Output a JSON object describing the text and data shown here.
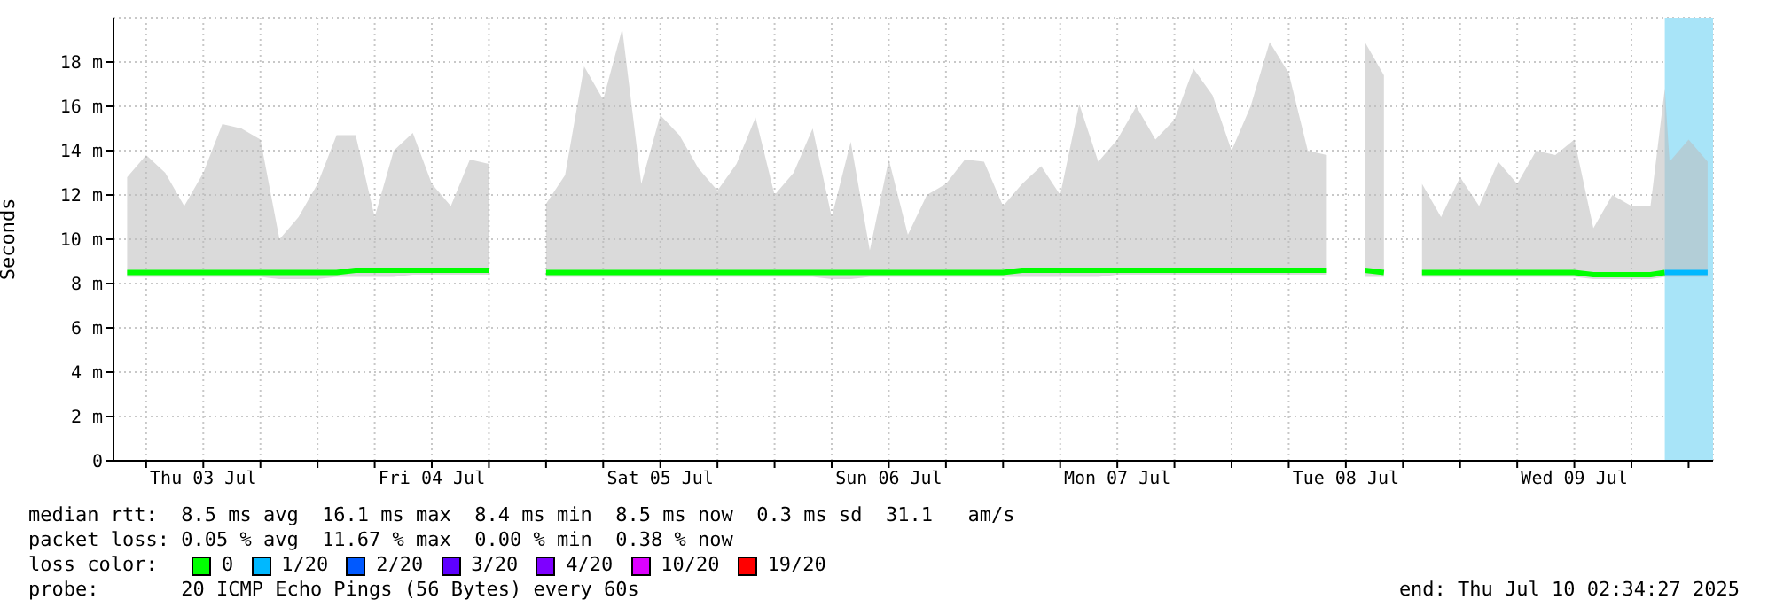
{
  "chart_data": {
    "type": "line",
    "ylabel": "Seconds",
    "xlim": [
      "2025-07-03T02:34",
      "2025-07-10T02:34"
    ],
    "xticks": [
      {
        "value": "2025-07-03T06:00",
        "label": null
      },
      {
        "value": "2025-07-03T12:00",
        "label": "Thu 03 Jul"
      },
      {
        "value": "2025-07-03T18:00",
        "label": null
      },
      {
        "value": "2025-07-04T00:00",
        "label": null
      },
      {
        "value": "2025-07-04T06:00",
        "label": null
      },
      {
        "value": "2025-07-04T12:00",
        "label": "Fri 04 Jul"
      },
      {
        "value": "2025-07-04T18:00",
        "label": null
      },
      {
        "value": "2025-07-05T00:00",
        "label": null
      },
      {
        "value": "2025-07-05T06:00",
        "label": null
      },
      {
        "value": "2025-07-05T12:00",
        "label": "Sat 05 Jul"
      },
      {
        "value": "2025-07-05T18:00",
        "label": null
      },
      {
        "value": "2025-07-06T00:00",
        "label": null
      },
      {
        "value": "2025-07-06T06:00",
        "label": null
      },
      {
        "value": "2025-07-06T12:00",
        "label": "Sun 06 Jul"
      },
      {
        "value": "2025-07-06T18:00",
        "label": null
      },
      {
        "value": "2025-07-07T00:00",
        "label": null
      },
      {
        "value": "2025-07-07T06:00",
        "label": null
      },
      {
        "value": "2025-07-07T12:00",
        "label": "Mon 07 Jul"
      },
      {
        "value": "2025-07-07T18:00",
        "label": null
      },
      {
        "value": "2025-07-08T00:00",
        "label": null
      },
      {
        "value": "2025-07-08T06:00",
        "label": null
      },
      {
        "value": "2025-07-08T12:00",
        "label": "Tue 08 Jul"
      },
      {
        "value": "2025-07-08T18:00",
        "label": null
      },
      {
        "value": "2025-07-09T00:00",
        "label": null
      },
      {
        "value": "2025-07-09T06:00",
        "label": null
      },
      {
        "value": "2025-07-09T12:00",
        "label": "Wed 09 Jul"
      },
      {
        "value": "2025-07-09T18:00",
        "label": null
      },
      {
        "value": "2025-07-10T00:00",
        "label": null
      }
    ],
    "ylim": [
      0,
      20
    ],
    "yticks": [
      0,
      {
        "value": 2,
        "label": "2 m"
      },
      {
        "value": 4,
        "label": "4 m"
      },
      {
        "value": 6,
        "label": "6 m"
      },
      {
        "value": 8,
        "label": "8 m"
      },
      {
        "value": 10,
        "label": "10 m"
      },
      {
        "value": 12,
        "label": "12 m"
      },
      {
        "value": 14,
        "label": "14 m"
      },
      {
        "value": 16,
        "label": "16 m"
      },
      {
        "value": 18,
        "label": "18 m"
      }
    ],
    "grid": true,
    "legend": "bottom",
    "legend_title": "loss color:",
    "marker": "none",
    "line_style": "solid",
    "x": [
      "2025-07-03T04:00",
      "2025-07-03T06:00",
      "2025-07-03T08:00",
      "2025-07-03T10:00",
      "2025-07-03T12:00",
      "2025-07-03T14:00",
      "2025-07-03T16:00",
      "2025-07-03T18:00",
      "2025-07-03T20:00",
      "2025-07-03T22:00",
      "2025-07-04T00:00",
      "2025-07-04T02:00",
      "2025-07-04T04:00",
      "2025-07-04T06:00",
      "2025-07-04T08:00",
      "2025-07-04T10:00",
      "2025-07-04T12:00",
      "2025-07-04T14:00",
      "2025-07-04T16:00",
      "2025-07-04T18:00",
      "2025-07-04T20:00",
      "2025-07-04T22:00",
      "2025-07-05T00:00",
      "2025-07-05T02:00",
      "2025-07-05T04:00",
      "2025-07-05T06:00",
      "2025-07-05T08:00",
      "2025-07-05T10:00",
      "2025-07-05T12:00",
      "2025-07-05T14:00",
      "2025-07-05T16:00",
      "2025-07-05T18:00",
      "2025-07-05T20:00",
      "2025-07-05T22:00",
      "2025-07-06T00:00",
      "2025-07-06T02:00",
      "2025-07-06T04:00",
      "2025-07-06T06:00",
      "2025-07-06T08:00",
      "2025-07-06T10:00",
      "2025-07-06T12:00",
      "2025-07-06T14:00",
      "2025-07-06T16:00",
      "2025-07-06T18:00",
      "2025-07-06T20:00",
      "2025-07-06T22:00",
      "2025-07-07T00:00",
      "2025-07-07T02:00",
      "2025-07-07T04:00",
      "2025-07-07T06:00",
      "2025-07-07T08:00",
      "2025-07-07T10:00",
      "2025-07-07T12:00",
      "2025-07-07T14:00",
      "2025-07-07T16:00",
      "2025-07-07T18:00",
      "2025-07-07T20:00",
      "2025-07-07T22:00",
      "2025-07-08T00:00",
      "2025-07-08T02:00",
      "2025-07-08T04:00",
      "2025-07-08T06:00",
      "2025-07-08T08:00",
      "2025-07-08T10:00",
      "2025-07-08T12:00",
      "2025-07-08T14:00",
      "2025-07-08T16:00",
      "2025-07-08T18:00",
      "2025-07-08T20:00",
      "2025-07-08T22:00",
      "2025-07-09T00:00",
      "2025-07-09T02:00",
      "2025-07-09T04:00",
      "2025-07-09T06:00",
      "2025-07-09T08:00",
      "2025-07-09T10:00",
      "2025-07-09T12:00",
      "2025-07-09T14:00",
      "2025-07-09T16:00",
      "2025-07-09T18:00",
      "2025-07-09T20:00",
      "2025-07-09T21:30",
      "2025-07-09T22:00",
      "2025-07-10T00:00",
      "2025-07-10T02:00"
    ],
    "series": [
      {
        "name": "0",
        "color": "#00ff00",
        "values": [
          8.5,
          8.5,
          8.5,
          8.5,
          8.5,
          8.5,
          8.5,
          8.5,
          8.5,
          8.5,
          8.5,
          8.5,
          8.6,
          8.6,
          8.6,
          8.6,
          8.6,
          8.6,
          8.6,
          8.6,
          null,
          null,
          8.5,
          8.5,
          8.5,
          8.5,
          8.5,
          8.5,
          8.5,
          8.5,
          8.5,
          8.5,
          8.5,
          8.5,
          8.5,
          8.5,
          8.5,
          8.5,
          8.5,
          8.5,
          8.5,
          8.5,
          8.5,
          8.5,
          8.5,
          8.5,
          8.5,
          8.6,
          8.6,
          8.6,
          8.6,
          8.6,
          8.6,
          8.6,
          8.6,
          8.6,
          8.6,
          8.6,
          8.6,
          8.6,
          8.6,
          8.6,
          8.6,
          8.6,
          null,
          8.6,
          8.5,
          null,
          8.5,
          8.5,
          8.5,
          8.5,
          8.5,
          8.5,
          8.5,
          8.5,
          8.5,
          8.4,
          8.4,
          8.4,
          8.4,
          8.5,
          null,
          null,
          null
        ],
        "lower": [
          8.3,
          8.3,
          8.3,
          8.3,
          8.3,
          8.3,
          8.3,
          8.3,
          8.2,
          8.2,
          8.2,
          8.3,
          8.3,
          8.3,
          8.3,
          8.4,
          8.4,
          8.4,
          8.4,
          8.4,
          null,
          null,
          8.3,
          8.3,
          8.3,
          8.3,
          8.3,
          8.3,
          8.3,
          8.3,
          8.3,
          8.3,
          8.3,
          8.3,
          8.3,
          8.3,
          8.3,
          8.2,
          8.2,
          8.3,
          8.3,
          8.3,
          8.3,
          8.3,
          8.3,
          8.3,
          8.3,
          8.3,
          8.3,
          8.3,
          8.3,
          8.3,
          8.4,
          8.4,
          8.4,
          8.4,
          8.4,
          8.4,
          8.4,
          8.4,
          8.4,
          8.4,
          8.4,
          8.4,
          null,
          8.3,
          8.3,
          null,
          8.3,
          8.3,
          8.3,
          8.3,
          8.3,
          8.3,
          8.3,
          8.3,
          8.3,
          8.2,
          8.2,
          8.2,
          8.2,
          8.3,
          8.3,
          8.3,
          8.3
        ],
        "upper": [
          12.8,
          13.8,
          13,
          11.5,
          13,
          15.2,
          15,
          14.5,
          10,
          11,
          12.5,
          14.7,
          14.7,
          11,
          14,
          14.8,
          12.5,
          11.5,
          13.6,
          13.4,
          null,
          null,
          11.6,
          12.9,
          17.8,
          16.3,
          19.5,
          12.5,
          15.6,
          14.7,
          13.2,
          12.2,
          13.4,
          15.5,
          12,
          13,
          15,
          11,
          14.4,
          9.5,
          13.6,
          10.2,
          12,
          12.5,
          13.6,
          13.5,
          11.5,
          12.5,
          13.3,
          12,
          16.1,
          13.5,
          14.5,
          16,
          14.5,
          15.4,
          17.7,
          16.5,
          14,
          16,
          18.9,
          17.5,
          14,
          13.8,
          null,
          18.9,
          17.4,
          null,
          12.5,
          11,
          12.8,
          11.5,
          13.5,
          12.5,
          14,
          13.8,
          14.5,
          10.5,
          12,
          11.5,
          11.5,
          16.8,
          13.5,
          14.5,
          13.5
        ]
      },
      {
        "name": "1/20",
        "color": "#00b8ff",
        "values": [
          null,
          null,
          null,
          null,
          null,
          null,
          null,
          null,
          null,
          null,
          null,
          null,
          null,
          null,
          null,
          null,
          null,
          null,
          null,
          null,
          null,
          null,
          null,
          null,
          null,
          null,
          null,
          null,
          null,
          null,
          null,
          null,
          null,
          null,
          null,
          null,
          null,
          null,
          null,
          null,
          null,
          null,
          null,
          null,
          null,
          null,
          null,
          null,
          null,
          null,
          null,
          null,
          null,
          null,
          null,
          null,
          null,
          null,
          null,
          null,
          null,
          null,
          null,
          null,
          null,
          null,
          null,
          null,
          null,
          null,
          null,
          null,
          null,
          null,
          null,
          null,
          null,
          null,
          null,
          null,
          null,
          8.5,
          8.5,
          8.5,
          8.5
        ]
      },
      {
        "name": "2/20",
        "color": "#0059ff",
        "values": [
          null,
          null,
          null,
          null,
          null,
          null,
          null,
          null,
          null,
          null,
          null,
          null,
          null,
          null,
          null,
          null,
          null,
          null,
          null,
          null,
          null,
          null,
          null,
          null,
          null,
          null,
          null,
          null,
          null,
          null,
          null,
          null,
          null,
          null,
          null,
          null,
          null,
          null,
          null,
          null,
          null,
          null,
          null,
          null,
          null,
          null,
          null,
          null,
          null,
          null,
          null,
          null,
          null,
          null,
          null,
          null,
          null,
          null,
          null,
          null,
          null,
          null,
          null,
          null,
          null,
          null,
          null,
          null,
          null,
          null,
          null,
          null,
          null,
          null,
          null,
          null,
          null,
          null,
          null,
          null,
          null,
          null,
          null,
          null,
          null
        ]
      },
      {
        "name": "3/20",
        "color": "#5e00ff",
        "values": [
          null,
          null,
          null,
          null,
          null,
          null,
          null,
          null,
          null,
          null,
          null,
          null,
          null,
          null,
          null,
          null,
          null,
          null,
          null,
          null,
          null,
          null,
          null,
          null,
          null,
          null,
          null,
          null,
          null,
          null,
          null,
          null,
          null,
          null,
          null,
          null,
          null,
          null,
          null,
          null,
          null,
          null,
          null,
          null,
          null,
          null,
          null,
          null,
          null,
          null,
          null,
          null,
          null,
          null,
          null,
          null,
          null,
          null,
          null,
          null,
          null,
          null,
          null,
          null,
          null,
          null,
          null,
          null,
          null,
          null,
          null,
          null,
          null,
          null,
          null,
          null,
          null,
          null,
          null,
          null,
          null,
          null,
          null,
          null,
          null
        ]
      },
      {
        "name": "4/20",
        "color": "#7e00ff",
        "values": [
          null,
          null,
          null,
          null,
          null,
          null,
          null,
          null,
          null,
          null,
          null,
          null,
          null,
          null,
          null,
          null,
          null,
          null,
          null,
          null,
          null,
          null,
          null,
          null,
          null,
          null,
          null,
          null,
          null,
          null,
          null,
          null,
          null,
          null,
          null,
          null,
          null,
          null,
          null,
          null,
          null,
          null,
          null,
          null,
          null,
          null,
          null,
          null,
          null,
          null,
          null,
          null,
          null,
          null,
          null,
          null,
          null,
          null,
          null,
          null,
          null,
          null,
          null,
          null,
          null,
          null,
          null,
          null,
          null,
          null,
          null,
          null,
          null,
          null,
          null,
          null,
          null,
          null,
          null,
          null,
          null,
          null,
          null,
          null,
          null
        ]
      },
      {
        "name": "10/20",
        "color": "#dd00ff",
        "values": [
          null,
          null,
          null,
          null,
          null,
          null,
          null,
          null,
          null,
          null,
          null,
          null,
          null,
          null,
          null,
          null,
          null,
          null,
          null,
          null,
          null,
          null,
          null,
          null,
          null,
          null,
          null,
          null,
          null,
          null,
          null,
          null,
          null,
          null,
          null,
          null,
          null,
          null,
          null,
          null,
          null,
          null,
          null,
          null,
          null,
          null,
          null,
          null,
          null,
          null,
          null,
          null,
          null,
          null,
          null,
          null,
          null,
          null,
          null,
          null,
          null,
          null,
          null,
          null,
          null,
          null,
          null,
          null,
          null,
          null,
          null,
          null,
          null,
          null,
          null,
          null,
          null,
          null,
          null,
          null,
          null,
          null,
          null,
          null,
          null
        ]
      },
      {
        "name": "19/20",
        "color": "#ff0000",
        "values": [
          null,
          null,
          null,
          null,
          null,
          null,
          null,
          null,
          null,
          null,
          null,
          null,
          null,
          null,
          null,
          null,
          null,
          null,
          null,
          null,
          null,
          null,
          null,
          null,
          null,
          null,
          null,
          null,
          null,
          null,
          null,
          null,
          null,
          null,
          null,
          null,
          null,
          null,
          null,
          null,
          null,
          null,
          null,
          null,
          null,
          null,
          null,
          null,
          null,
          null,
          null,
          null,
          null,
          null,
          null,
          null,
          null,
          null,
          null,
          null,
          null,
          null,
          null,
          null,
          null,
          null,
          null,
          null,
          null,
          null,
          null,
          null,
          null,
          null,
          null,
          null,
          null,
          null,
          null,
          null,
          null,
          null,
          null,
          null,
          null
        ]
      }
    ],
    "bands": [
      {
        "axis": "x",
        "from": "2025-07-09T21:30",
        "to": "2025-07-10T02:34",
        "color": "#a8e4f8"
      }
    ],
    "annotations": [
      "median rtt:  8.5 ms avg  16.1 ms max  8.4 ms min  8.5 ms now  0.3 ms sd  31.1   am/s",
      "packet loss: 0.05 % avg  11.67 % max  0.00 % min  0.38 % now",
      "probe:       20 ICMP Echo Pings (56 Bytes) every 60s",
      "end: Thu Jul 10 02:34:27 2025"
    ]
  }
}
